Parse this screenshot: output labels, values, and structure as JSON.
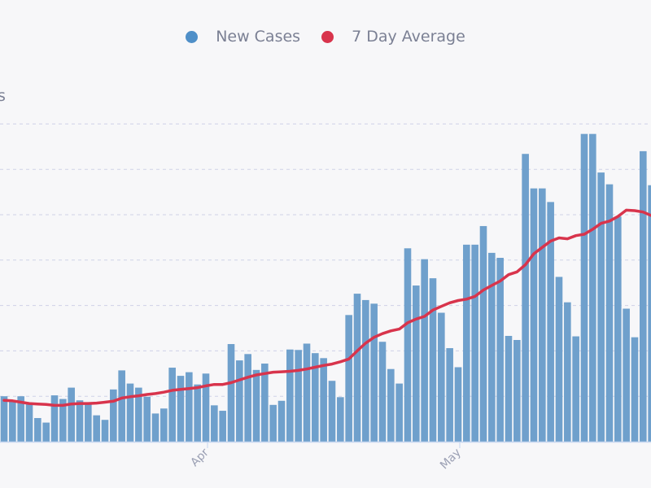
{
  "chart_data": {
    "type": "bar",
    "title": "",
    "xlabel": "",
    "ylabel": "s",
    "ylim": [
      0,
      7
    ],
    "grid": true,
    "legend_position": "top",
    "x_tick_labels": [
      "Apr",
      "May"
    ],
    "x_tick_dates": [
      "Apr 1",
      "May 1"
    ],
    "x": [
      "Mar 8",
      "Mar 9",
      "Mar 10",
      "Mar 11",
      "Mar 12",
      "Mar 13",
      "Mar 14",
      "Mar 15",
      "Mar 16",
      "Mar 17",
      "Mar 18",
      "Mar 19",
      "Mar 20",
      "Mar 21",
      "Mar 22",
      "Mar 23",
      "Mar 24",
      "Mar 25",
      "Mar 26",
      "Mar 27",
      "Mar 28",
      "Mar 29",
      "Mar 30",
      "Mar 31",
      "Apr 1",
      "Apr 2",
      "Apr 3",
      "Apr 4",
      "Apr 5",
      "Apr 6",
      "Apr 7",
      "Apr 8",
      "Apr 9",
      "Apr 10",
      "Apr 11",
      "Apr 12",
      "Apr 13",
      "Apr 14",
      "Apr 15",
      "Apr 16",
      "Apr 17",
      "Apr 18",
      "Apr 19",
      "Apr 20",
      "Apr 21",
      "Apr 22",
      "Apr 23",
      "Apr 24",
      "Apr 25",
      "Apr 26",
      "Apr 27",
      "Apr 28",
      "Apr 29",
      "Apr 30",
      "May 1",
      "May 2",
      "May 3",
      "May 4",
      "May 5",
      "May 6",
      "May 7",
      "May 8",
      "May 9",
      "May 10",
      "May 11",
      "May 12",
      "May 13",
      "May 14",
      "May 15",
      "May 16",
      "May 17",
      "May 18",
      "May 19",
      "May 20",
      "May 21",
      "May 22",
      "May 23",
      "May 24"
    ],
    "series": [
      {
        "name": "New Cases",
        "type": "bar",
        "color": "#6fa0cc",
        "values": [
          1.0,
          0.89,
          1.0,
          0.84,
          0.52,
          0.42,
          1.02,
          0.94,
          1.19,
          0.91,
          0.85,
          0.58,
          0.48,
          1.15,
          1.57,
          1.28,
          1.19,
          0.99,
          0.62,
          0.73,
          1.63,
          1.45,
          1.53,
          1.26,
          1.5,
          0.8,
          0.68,
          2.15,
          1.79,
          1.93,
          1.58,
          1.72,
          0.81,
          0.9,
          2.03,
          2.02,
          2.16,
          1.95,
          1.84,
          1.34,
          0.98,
          2.79,
          3.26,
          3.12,
          3.04,
          2.2,
          1.6,
          1.28,
          4.26,
          3.44,
          4.02,
          3.6,
          2.84,
          2.06,
          1.64,
          4.34,
          4.34,
          4.75,
          4.16,
          4.05,
          2.33,
          2.24,
          6.34,
          5.58,
          5.58,
          5.28,
          3.63,
          3.07,
          2.32,
          6.78,
          6.78,
          5.93,
          5.67,
          4.96,
          2.93,
          2.3,
          6.4,
          5.65
        ]
      },
      {
        "name": "7 Day Average",
        "type": "line",
        "color": "#d8344c",
        "values": [
          0.91,
          0.9,
          0.87,
          0.84,
          0.83,
          0.82,
          0.8,
          0.8,
          0.83,
          0.84,
          0.84,
          0.85,
          0.87,
          0.89,
          0.96,
          0.99,
          1.01,
          1.04,
          1.06,
          1.09,
          1.13,
          1.15,
          1.17,
          1.19,
          1.23,
          1.26,
          1.26,
          1.3,
          1.36,
          1.42,
          1.47,
          1.5,
          1.53,
          1.54,
          1.55,
          1.57,
          1.6,
          1.64,
          1.68,
          1.71,
          1.76,
          1.82,
          2.0,
          2.17,
          2.3,
          2.38,
          2.44,
          2.48,
          2.62,
          2.7,
          2.76,
          2.9,
          2.98,
          3.06,
          3.11,
          3.14,
          3.2,
          3.34,
          3.44,
          3.54,
          3.68,
          3.74,
          3.9,
          4.14,
          4.28,
          4.42,
          4.49,
          4.47,
          4.54,
          4.57,
          4.68,
          4.81,
          4.86,
          4.96,
          5.1,
          5.09,
          5.06,
          4.98
        ]
      }
    ]
  },
  "colors": {
    "background": "#f7f7f9",
    "text": "#7b8094",
    "grid": "#c9cde6",
    "legend_new_cases": "#4f8fc8",
    "legend_average": "#d8344c"
  }
}
